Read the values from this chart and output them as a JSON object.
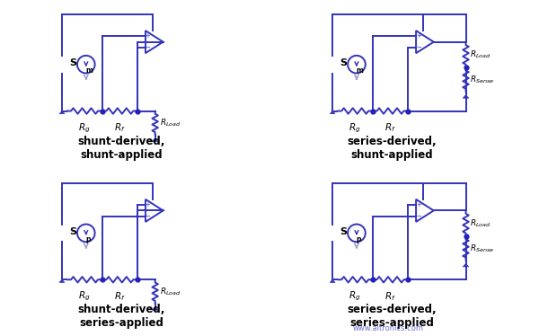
{
  "line_color": "#3333bb",
  "line_color_light": "#9999cc",
  "dot_color": "#2222bb",
  "bg_color": "#ffffff",
  "lw": 1.4,
  "titles": [
    "shunt-derived,\nshunt-applied",
    "series-derived,\nshunt-applied",
    "shunt-derived,\nseries-applied",
    "series-derived,\nseries-applied"
  ],
  "source_labels_main": [
    "S",
    "S",
    "S",
    "S"
  ],
  "source_subs": [
    "m",
    "m",
    "p",
    "p"
  ],
  "title_fontsize": 8.5,
  "label_fontsize": 7.5,
  "sub_fontsize": 5.5,
  "watermark": "www.aitronics.com"
}
